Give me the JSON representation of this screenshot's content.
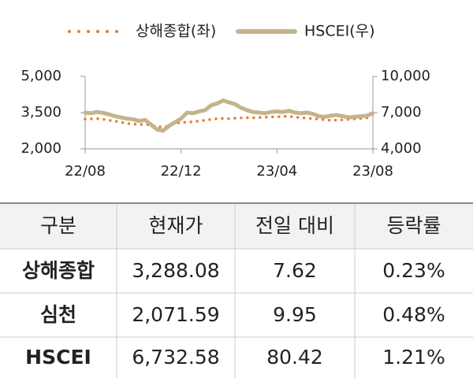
{
  "chart_data": {
    "type": "line",
    "categories": [
      "22/08",
      null,
      null,
      null,
      null,
      null,
      null,
      null,
      null,
      null,
      null,
      null,
      null,
      null,
      null,
      null,
      "22/12",
      null,
      null,
      null,
      null,
      null,
      null,
      null,
      null,
      null,
      null,
      null,
      null,
      null,
      null,
      null,
      "23/04",
      null,
      null,
      null,
      null,
      null,
      null,
      null,
      null,
      null,
      null,
      null,
      null,
      null,
      null,
      null,
      "23/08"
    ],
    "series": [
      {
        "name": "상해종합(좌)",
        "color": "#e87c2b",
        "style": "dotted",
        "values": [
          3230,
          3240,
          3250,
          3220,
          3180,
          3150,
          3100,
          3050,
          3030,
          3000,
          3020,
          2980,
          2930,
          2900,
          2960,
          3050,
          3100,
          3100,
          3120,
          3150,
          3180,
          3220,
          3250,
          3260,
          3250,
          3270,
          3280,
          3290,
          3280,
          3300,
          3310,
          3320,
          3330,
          3340,
          3350,
          3310,
          3290,
          3270,
          3250,
          3230,
          3200,
          3180,
          3190,
          3200,
          3220,
          3240,
          3260,
          3280,
          3290
        ]
      },
      {
        "name": "HSCEI(우)",
        "color": "#c4b48e",
        "style": "solid",
        "axis": "y2",
        "values": [
          7000,
          6950,
          7050,
          6980,
          6850,
          6700,
          6600,
          6500,
          6450,
          6300,
          6400,
          6000,
          5600,
          5500,
          5900,
          6200,
          6500,
          7000,
          6950,
          7100,
          7200,
          7600,
          7750,
          8000,
          7850,
          7700,
          7400,
          7200,
          7050,
          7000,
          6950,
          7050,
          7100,
          7050,
          7150,
          7000,
          6950,
          7000,
          6900,
          6700,
          6650,
          6750,
          6800,
          6700,
          6600,
          6650,
          6700,
          6750,
          6950
        ]
      }
    ],
    "ylim": [
      2000,
      5000
    ],
    "yticks": [
      {
        "value": 2000,
        "label": "2,000"
      },
      {
        "value": 3500,
        "label": "3,500"
      },
      {
        "value": 5000,
        "label": "5,000"
      }
    ],
    "y2lim": [
      4000,
      10000
    ],
    "y2ticks": [
      {
        "value": 4000,
        "label": "4,000"
      },
      {
        "value": 7000,
        "label": "7,000"
      },
      {
        "value": 10000,
        "label": "10,000"
      }
    ],
    "legend": "top"
  },
  "table": {
    "header": [
      "구분",
      "현재가",
      "전일 대비",
      "등락률"
    ],
    "rows": [
      [
        "상해종합",
        "3,288.08",
        "7.62",
        "0.23%"
      ],
      [
        "심천",
        "2,071.59",
        "9.95",
        "0.48%"
      ],
      [
        "HSCEI",
        "6,732.58",
        "80.42",
        "1.21%"
      ]
    ]
  }
}
